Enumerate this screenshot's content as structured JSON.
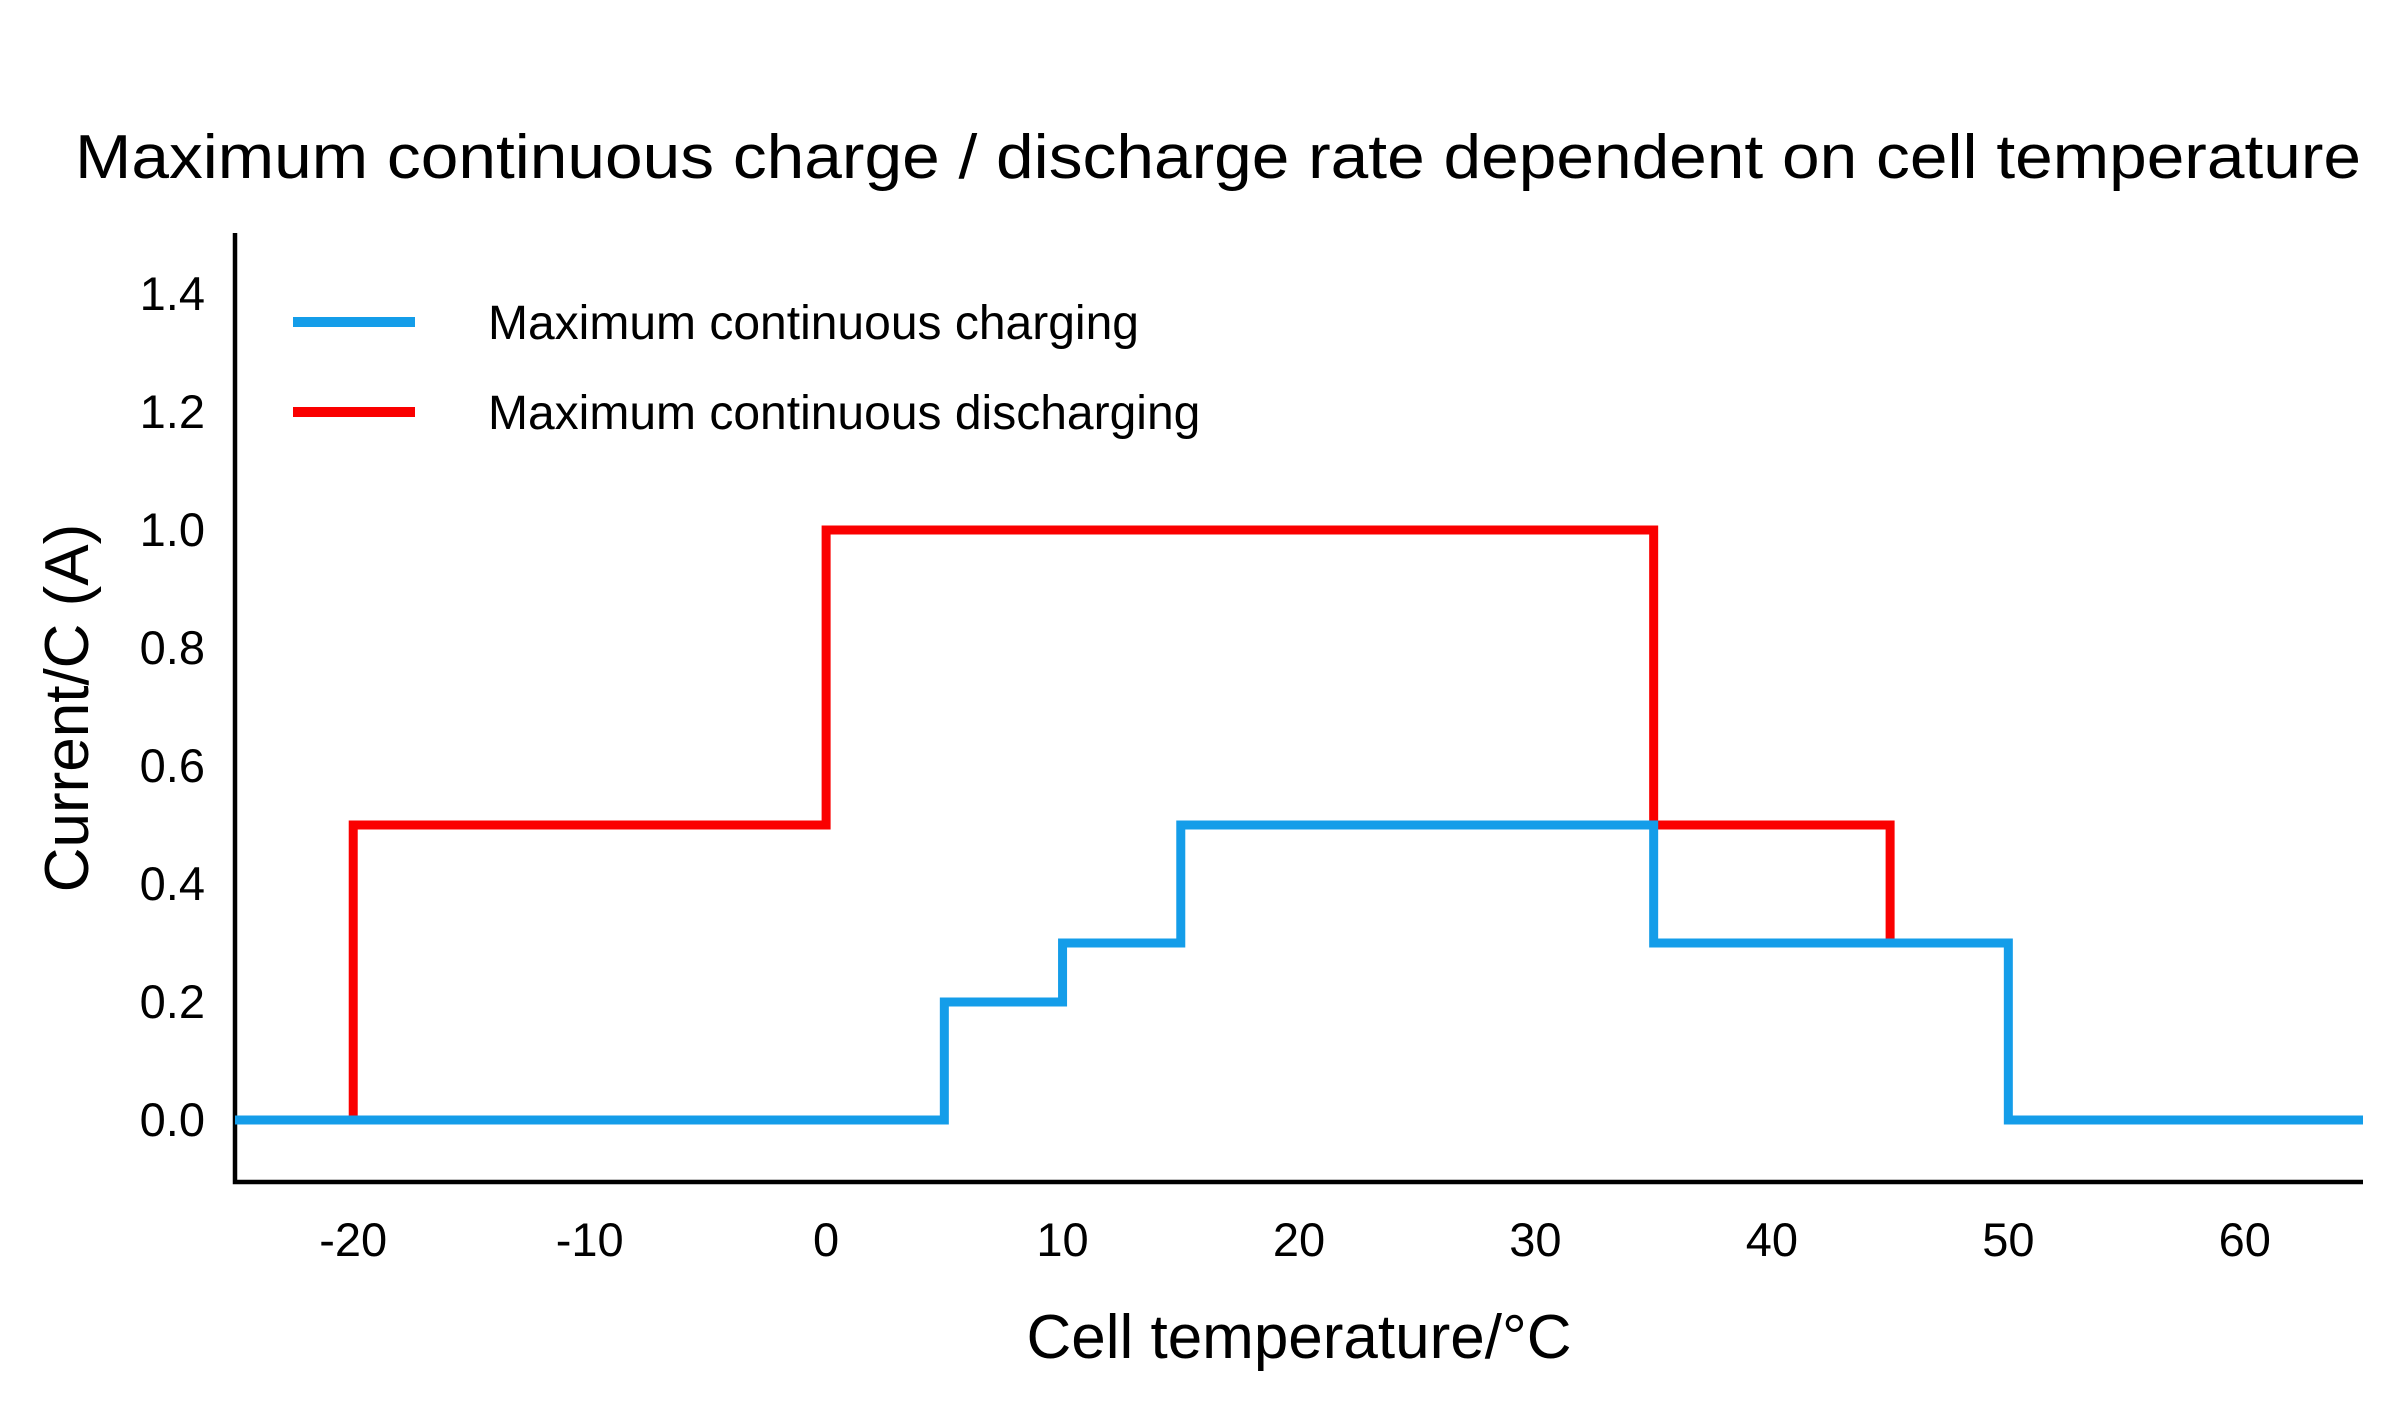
{
  "chart_data": {
    "type": "line",
    "line_style": "step",
    "title": "Maximum continuous charge / discharge rate dependent on cell temperature",
    "xlabel": "Cell temperature/°C",
    "ylabel": "Current/C (A)",
    "xlim": [
      -25,
      65
    ],
    "ylim": [
      -0.105,
      1.5
    ],
    "grid": false,
    "legend_position": "upper-left-inside",
    "axis_color": "#000000",
    "background_color": "#ffffff",
    "x_ticks": [
      {
        "value": -20,
        "label": "-20"
      },
      {
        "value": -10,
        "label": "-10"
      },
      {
        "value": 0,
        "label": "0"
      },
      {
        "value": 10,
        "label": "10"
      },
      {
        "value": 20,
        "label": "20"
      },
      {
        "value": 30,
        "label": "30"
      },
      {
        "value": 40,
        "label": "40"
      },
      {
        "value": 50,
        "label": "50"
      },
      {
        "value": 60,
        "label": "60"
      }
    ],
    "y_ticks": [
      {
        "value": 0.0,
        "label": "0.0"
      },
      {
        "value": 0.2,
        "label": "0.2"
      },
      {
        "value": 0.4,
        "label": "0.4"
      },
      {
        "value": 0.6,
        "label": "0.6"
      },
      {
        "value": 0.8,
        "label": "0.8"
      },
      {
        "value": 1.0,
        "label": "1.0"
      },
      {
        "value": 1.2,
        "label": "1.2"
      },
      {
        "value": 1.4,
        "label": "1.4"
      }
    ],
    "series": [
      {
        "name": "Maximum continuous charging",
        "color": "#149DE9",
        "points": [
          [
            -25,
            0
          ],
          [
            5,
            0
          ],
          [
            5,
            0.2
          ],
          [
            10,
            0.2
          ],
          [
            10,
            0.3
          ],
          [
            15,
            0.3
          ],
          [
            15,
            0.5
          ],
          [
            35,
            0.5
          ],
          [
            35,
            0.3
          ],
          [
            50,
            0.3
          ],
          [
            50,
            0
          ],
          [
            65,
            0
          ]
        ]
      },
      {
        "name": "Maximum continuous discharging",
        "color": "#FA0000",
        "points": [
          [
            -20,
            0
          ],
          [
            -20,
            0.5
          ],
          [
            0,
            0.5
          ],
          [
            0,
            1.0
          ],
          [
            35,
            1.0
          ],
          [
            35,
            0.5
          ],
          [
            45,
            0.5
          ],
          [
            45,
            0.3
          ]
        ]
      }
    ]
  }
}
